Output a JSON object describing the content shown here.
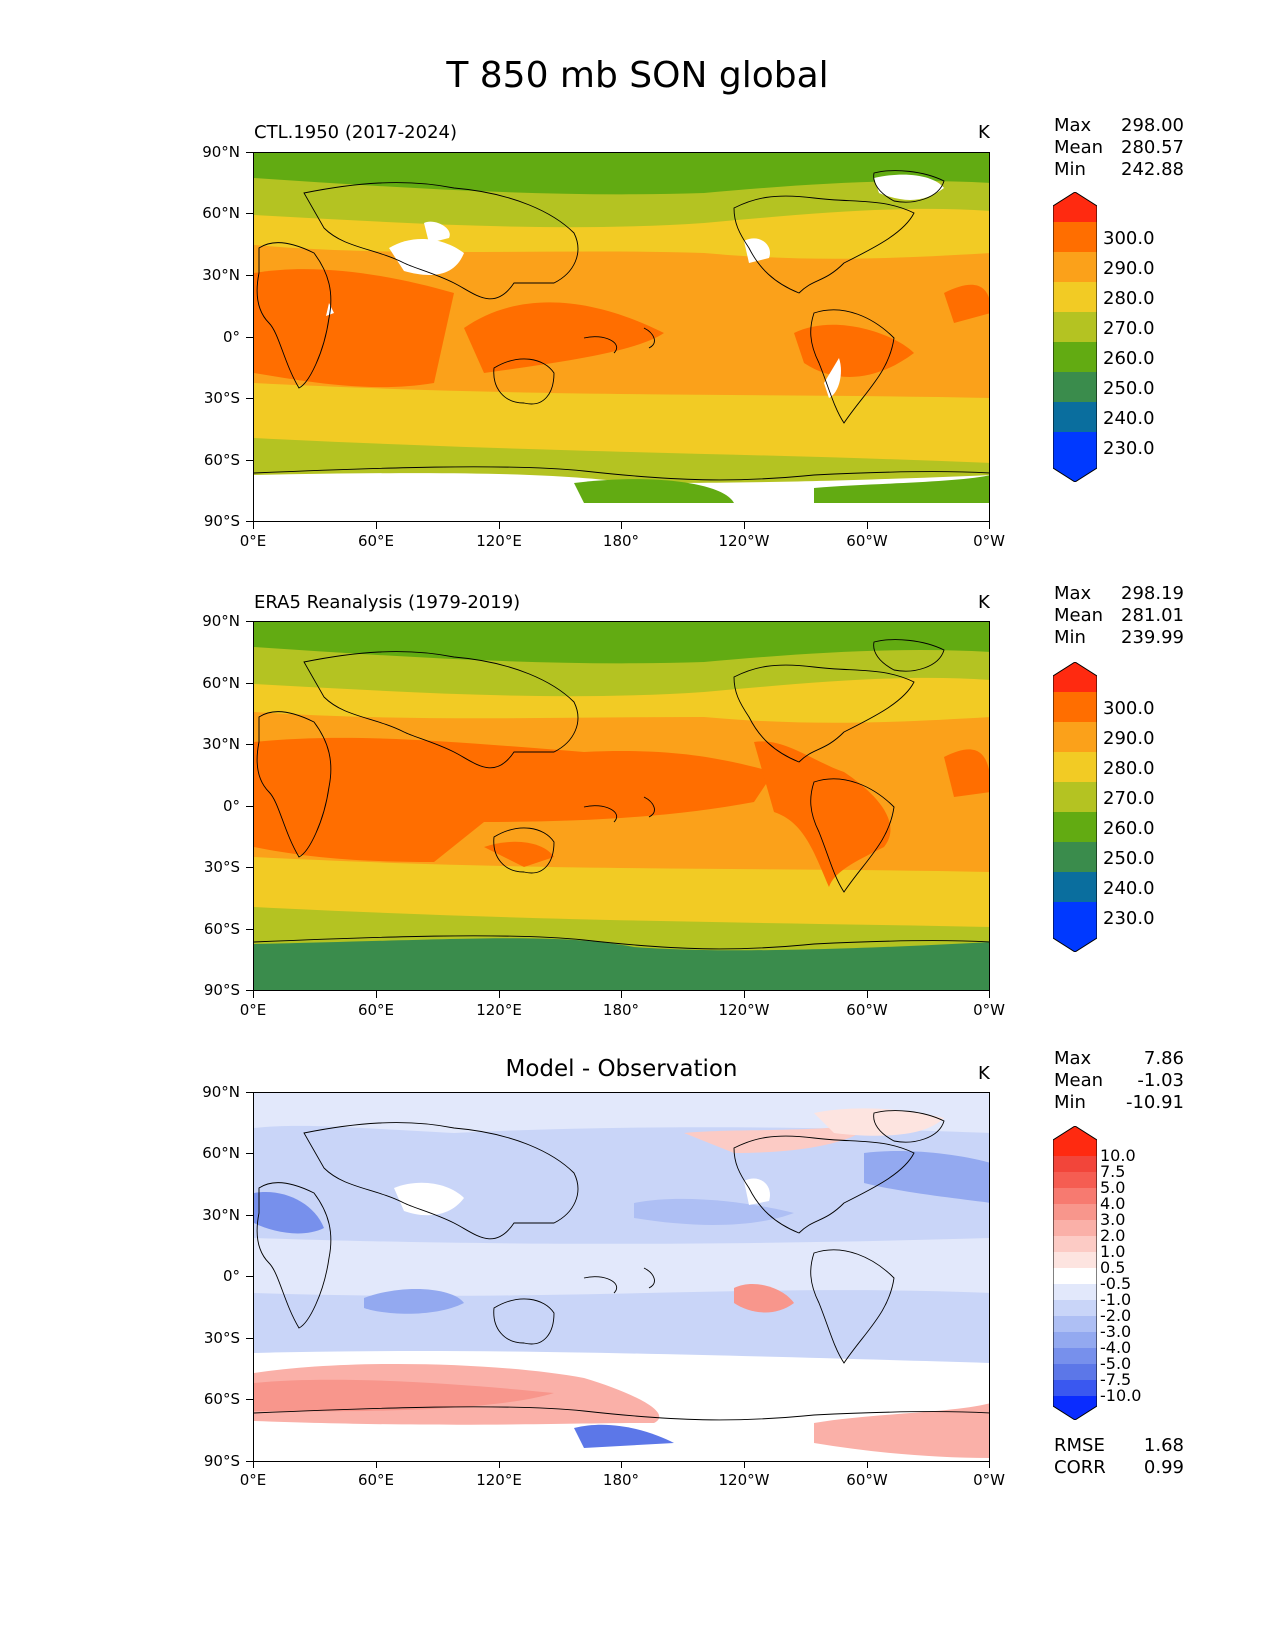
{
  "figure": {
    "title": "T 850 mb SON global",
    "unit": "K"
  },
  "chart_data": [
    {
      "type": "heatmap",
      "title": "CTL.1950 (2017-2024)",
      "unit": "K",
      "x_ticks": [
        "0°E",
        "60°E",
        "120°E",
        "180°",
        "120°W",
        "60°W",
        "0°W"
      ],
      "y_ticks": [
        "90°N",
        "60°N",
        "30°N",
        "0°",
        "30°S",
        "60°S",
        "90°S"
      ],
      "stats": [
        {
          "label": "Max",
          "value": "298.00"
        },
        {
          "label": "Mean",
          "value": "280.57"
        },
        {
          "label": "Min",
          "value": "242.88"
        }
      ],
      "colorbar_levels": [
        "300.0",
        "290.0",
        "280.0",
        "270.0",
        "260.0",
        "250.0",
        "240.0",
        "230.0"
      ],
      "colorbar_colors": [
        "#ff2a10",
        "#ff6e00",
        "#fba11a",
        "#f2cb24",
        "#b4c322",
        "#62ab12",
        "#3a8c4c",
        "#0a6e9e",
        "#0039ff"
      ]
    },
    {
      "type": "heatmap",
      "title": "ERA5 Reanalysis (1979-2019)",
      "unit": "K",
      "x_ticks": [
        "0°E",
        "60°E",
        "120°E",
        "180°",
        "120°W",
        "60°W",
        "0°W"
      ],
      "y_ticks": [
        "90°N",
        "60°N",
        "30°N",
        "0°",
        "30°S",
        "60°S",
        "90°S"
      ],
      "stats": [
        {
          "label": "Max",
          "value": "298.19"
        },
        {
          "label": "Mean",
          "value": "281.01"
        },
        {
          "label": "Min",
          "value": "239.99"
        }
      ],
      "colorbar_levels": [
        "300.0",
        "290.0",
        "280.0",
        "270.0",
        "260.0",
        "250.0",
        "240.0",
        "230.0"
      ],
      "colorbar_colors": [
        "#ff2a10",
        "#ff6e00",
        "#fba11a",
        "#f2cb24",
        "#b4c322",
        "#62ab12",
        "#3a8c4c",
        "#0a6e9e",
        "#0039ff"
      ]
    },
    {
      "type": "heatmap",
      "title": "Model - Observation",
      "unit": "K",
      "x_ticks": [
        "0°E",
        "60°E",
        "120°E",
        "180°",
        "120°W",
        "60°W",
        "0°W"
      ],
      "y_ticks": [
        "90°N",
        "60°N",
        "30°N",
        "0°",
        "30°S",
        "60°S",
        "90°S"
      ],
      "stats": [
        {
          "label": "Max",
          "value": "7.86"
        },
        {
          "label": "Mean",
          "value": "-1.03"
        },
        {
          "label": "Min",
          "value": "-10.91"
        }
      ],
      "metrics": [
        {
          "label": "RMSE",
          "value": "1.68"
        },
        {
          "label": "CORR",
          "value": "0.99"
        }
      ],
      "colorbar_levels": [
        "10.0",
        "7.5",
        "5.0",
        "4.0",
        "3.0",
        "2.0",
        "1.0",
        "0.5",
        "-0.5",
        "-1.0",
        "-2.0",
        "-3.0",
        "-4.0",
        "-5.0",
        "-7.5",
        "-10.0"
      ],
      "colorbar_colors": [
        "#ff2a10",
        "#f2453a",
        "#f55d52",
        "#f77a70",
        "#f8968c",
        "#fab0a8",
        "#fccbc5",
        "#fde4e0",
        "#ffffff",
        "#e2e8fb",
        "#c9d5f8",
        "#aebff4",
        "#93a9f0",
        "#7790ec",
        "#5c77e8",
        "#3a58f0",
        "#0a2cff"
      ]
    }
  ]
}
